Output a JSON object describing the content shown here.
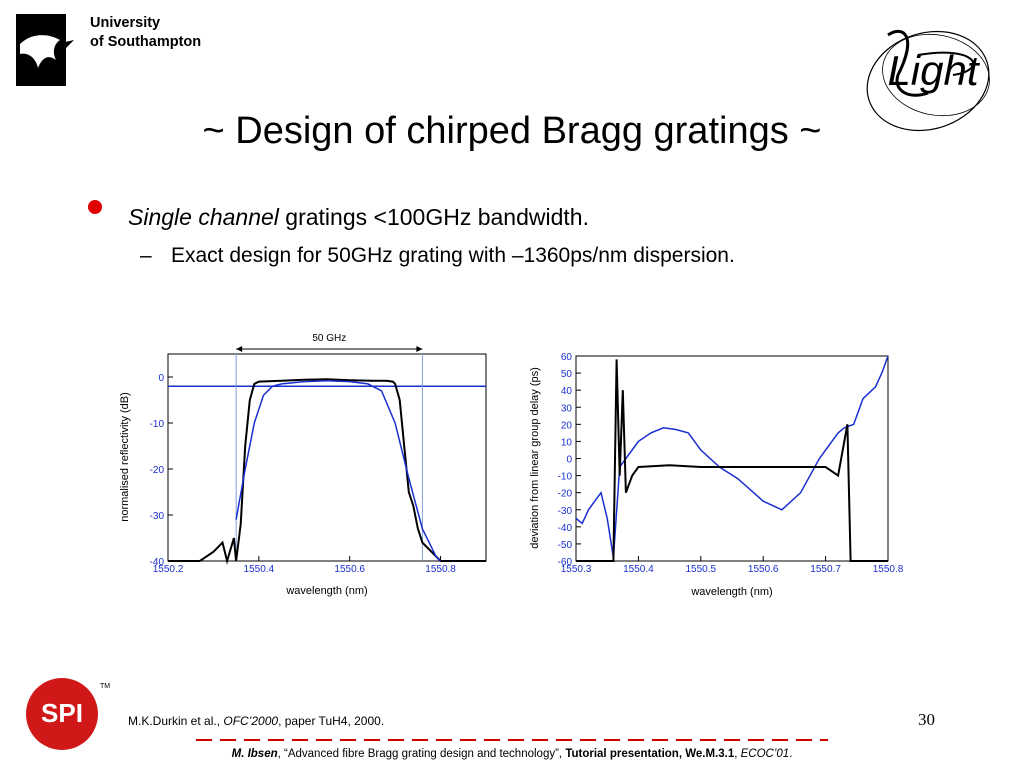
{
  "header": {
    "university_line1": "University",
    "university_line2": "of Southampton",
    "light_logo_text": "Light"
  },
  "slide": {
    "title": "~ Design of chirped Bragg gratings ~",
    "bullet_italic": "Single channel",
    "bullet_rest": " gratings <100GHz bandwidth.",
    "sub_dash": "–",
    "sub_text": "Exact design for 50GHz grating with –1360ps/nm dispersion."
  },
  "colors": {
    "bullet": "#e00000",
    "series_blue": "#1a2fd0",
    "series_black": "#000000",
    "footer_red": "#cc0000"
  },
  "chart_data": [
    {
      "type": "line",
      "xlabel": "wavelength (nm)",
      "ylabel": "normalised reflectivity (dB)",
      "xlim": [
        1550.2,
        1550.9
      ],
      "ylim": [
        -40,
        5
      ],
      "xticks": [
        "1550.2",
        "1550.4",
        "1550.6",
        "1550.8"
      ],
      "yticks": [
        "0",
        "-10",
        "-20",
        "-30",
        "-40"
      ],
      "annotation": "50 GHz",
      "annotation_range": [
        1550.35,
        1550.76
      ],
      "reference_level": -2,
      "series": [
        {
          "color": "black",
          "x": [
            1550.2,
            1550.27,
            1550.3,
            1550.32,
            1550.33,
            1550.345,
            1550.35,
            1550.36,
            1550.37,
            1550.38,
            1550.39,
            1550.4,
            1550.45,
            1550.5,
            1550.55,
            1550.6,
            1550.65,
            1550.68,
            1550.695,
            1550.7,
            1550.71,
            1550.72,
            1550.73,
            1550.74,
            1550.75,
            1550.76,
            1550.78,
            1550.8,
            1550.85,
            1550.9
          ],
          "y": [
            -40,
            -40,
            -38,
            -36,
            -40,
            -35,
            -40,
            -32,
            -15,
            -5,
            -1.5,
            -1,
            -0.8,
            -0.6,
            -0.5,
            -0.7,
            -0.8,
            -0.8,
            -1,
            -1.5,
            -5,
            -15,
            -25,
            -28,
            -33,
            -36,
            -38,
            -40,
            -40,
            -40
          ]
        },
        {
          "color": "blue",
          "x": [
            1550.35,
            1550.37,
            1550.39,
            1550.41,
            1550.43,
            1550.45,
            1550.5,
            1550.55,
            1550.6,
            1550.64,
            1550.67,
            1550.7,
            1550.73,
            1550.76,
            1550.79,
            1550.8
          ],
          "y": [
            -31,
            -20,
            -10,
            -4,
            -2,
            -1.5,
            -1,
            -0.8,
            -1,
            -1.5,
            -3,
            -10,
            -22,
            -33,
            -39,
            -40
          ]
        }
      ]
    },
    {
      "type": "line",
      "xlabel": "wavelength (nm)",
      "ylabel": "deviation from linear group delay (ps)",
      "xlim": [
        1550.3,
        1550.8
      ],
      "ylim": [
        -60,
        60
      ],
      "xticks": [
        "1550.3",
        "1550.4",
        "1550.5",
        "1550.6",
        "1550.7",
        "1550.8"
      ],
      "yticks": [
        "60",
        "50",
        "40",
        "30",
        "20",
        "10",
        "0",
        "-10",
        "-20",
        "-30",
        "-40",
        "-50",
        "-60"
      ],
      "series": [
        {
          "color": "blue",
          "x": [
            1550.3,
            1550.31,
            1550.32,
            1550.33,
            1550.34,
            1550.35,
            1550.36,
            1550.37,
            1550.38,
            1550.4,
            1550.42,
            1550.44,
            1550.46,
            1550.48,
            1550.5,
            1550.53,
            1550.56,
            1550.6,
            1550.63,
            1550.66,
            1550.69,
            1550.72,
            1550.73,
            1550.745,
            1550.76,
            1550.78,
            1550.79,
            1550.8
          ],
          "y": [
            -35,
            -38,
            -30,
            -25,
            -20,
            -35,
            -58,
            -5,
            0,
            10,
            15,
            18,
            17,
            15,
            5,
            -5,
            -12,
            -25,
            -30,
            -20,
            0,
            15,
            18,
            20,
            35,
            42,
            50,
            60
          ]
        },
        {
          "color": "black",
          "x": [
            1550.3,
            1550.36,
            1550.365,
            1550.37,
            1550.375,
            1550.38,
            1550.39,
            1550.4,
            1550.45,
            1550.5,
            1550.55,
            1550.6,
            1550.65,
            1550.7,
            1550.72,
            1550.735,
            1550.74,
            1550.745,
            1550.75,
            1550.8
          ],
          "y": [
            -60,
            -60,
            58,
            -10,
            40,
            -20,
            -10,
            -5,
            -4,
            -5,
            -5,
            -5,
            -5,
            -5,
            -10,
            20,
            -60,
            -60,
            -60,
            -60
          ]
        }
      ]
    }
  ],
  "footer": {
    "ref_author": "M.K.Durkin et al., ",
    "ref_conf": "OFC’2000",
    "ref_rest": ", paper TuH4, 2000.",
    "page_number": "30",
    "author": "M. Ibsen",
    "talk": ", “Advanced fibre Bragg grating design and technology”, ",
    "session": "Tutorial presentation, We.M.3.1",
    "sep": ", ",
    "venue": "ECOC’01",
    "end": ".",
    "spi_logo_text": "SPI",
    "spi_tm": "TM"
  }
}
